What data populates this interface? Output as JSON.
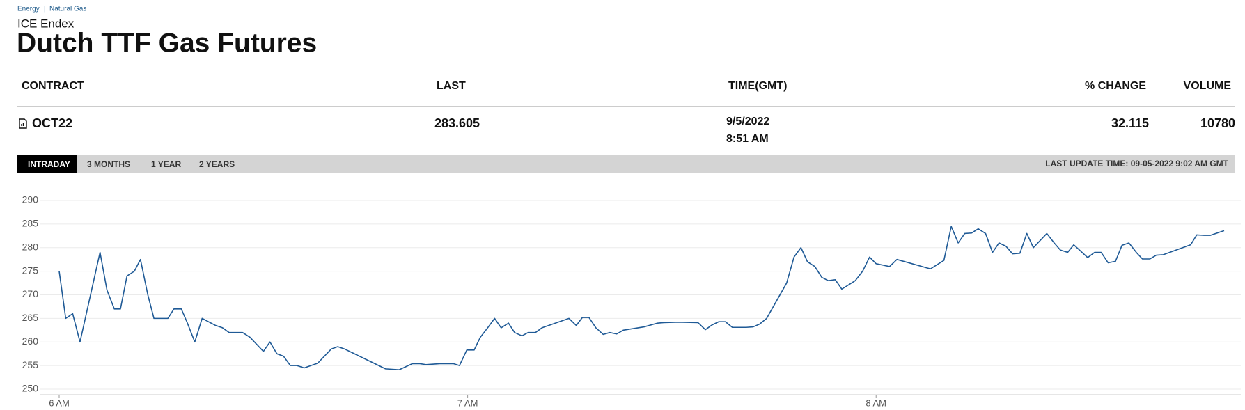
{
  "breadcrumb": [
    "Energy",
    "Natural Gas"
  ],
  "exchange": "ICE Endex",
  "title": "Dutch TTF Gas Futures",
  "table": {
    "headers": [
      "CONTRACT",
      "LAST",
      "TIME(GMT)",
      "% CHANGE",
      "VOLUME"
    ],
    "row": {
      "contract": "OCT22",
      "last": 283.605,
      "date": "9/5/2022",
      "time": "8:51 AM",
      "change": 32.115,
      "volume": 10780
    }
  },
  "tabs": [
    "INTRADAY",
    "3 MONTHS",
    "1 YEAR",
    "2 YEARS"
  ],
  "active_tab": 0,
  "last_update": "LAST UPDATE TIME: 09-05-2022 9:02 AM GMT",
  "chart_data": {
    "type": "line",
    "color": "#1f5a96",
    "grid": true,
    "x": [
      6.0,
      6.016,
      6.033,
      6.051,
      6.1,
      6.117,
      6.135,
      6.15,
      6.166,
      6.184,
      6.199,
      6.217,
      6.232,
      6.266,
      6.281,
      6.299,
      6.314,
      6.332,
      6.35,
      6.383,
      6.4,
      6.416,
      6.449,
      6.467,
      6.5,
      6.516,
      6.533,
      6.549,
      6.566,
      6.582,
      6.6,
      6.633,
      6.666,
      6.682,
      6.699,
      6.799,
      6.832,
      6.865,
      6.883,
      6.898,
      6.932,
      6.965,
      6.98,
      6.998,
      7.016,
      7.031,
      7.049,
      7.066,
      7.082,
      7.1,
      7.115,
      7.133,
      7.148,
      7.166,
      7.182,
      7.248,
      7.266,
      7.281,
      7.297,
      7.314,
      7.332,
      7.348,
      7.365,
      7.381,
      7.432,
      7.465,
      7.48,
      7.516,
      7.564,
      7.582,
      7.598,
      7.615,
      7.631,
      7.648,
      7.682,
      7.699,
      7.715,
      7.732,
      7.781,
      7.799,
      7.816,
      7.832,
      7.85,
      7.867,
      7.883,
      7.9,
      7.916,
      7.949,
      7.967,
      7.984,
      8.0,
      8.033,
      8.051,
      8.133,
      8.166,
      8.184,
      8.201,
      8.217,
      8.234,
      8.25,
      8.268,
      8.285,
      8.301,
      8.318,
      8.334,
      8.352,
      8.369,
      8.385,
      8.418,
      8.436,
      8.451,
      8.469,
      8.484,
      8.518,
      8.535,
      8.551,
      8.568,
      8.586,
      8.602,
      8.619,
      8.637,
      8.652,
      8.67,
      8.686,
      8.703,
      8.77,
      8.785,
      8.803,
      8.818,
      8.852
    ],
    "values": [
      275,
      265,
      266,
      260,
      279,
      271,
      267,
      267,
      274,
      275,
      277.5,
      270,
      265,
      265,
      267,
      267,
      264,
      260,
      265,
      263.5,
      263,
      262,
      262,
      261,
      258,
      260,
      257.5,
      257,
      255,
      255,
      254.5,
      255.5,
      258.5,
      259,
      258.5,
      254.3,
      254.1,
      255.4,
      255.4,
      255.2,
      255.4,
      255.4,
      255,
      258.3,
      258.3,
      261,
      263,
      265,
      263,
      264,
      262,
      261.3,
      262,
      262,
      263,
      265,
      263.5,
      265.2,
      265.2,
      263,
      261.6,
      262,
      261.7,
      262.5,
      263.2,
      264,
      264.1,
      264.2,
      264.1,
      262.6,
      263.6,
      264.3,
      264.3,
      263.1,
      263.1,
      263.2,
      263.8,
      265,
      272.5,
      278,
      280,
      277,
      276,
      273.7,
      273,
      273.2,
      271.2,
      273,
      275,
      278,
      276.6,
      276,
      277.5,
      275.5,
      277.3,
      284.5,
      281,
      283,
      283.1,
      284,
      283,
      279,
      281,
      280.3,
      278.7,
      278.8,
      283,
      280,
      283,
      281,
      279.5,
      279,
      280.6,
      277.9,
      279,
      279,
      276.8,
      277.1,
      280.5,
      281,
      279,
      277.6,
      277.6,
      278.4,
      278.5,
      280.6,
      282.7,
      282.6,
      282.6,
      283.6
    ],
    "xlim": [
      6,
      8.852
    ],
    "xticks": [
      {
        "value": 6,
        "label": "6 AM"
      },
      {
        "value": 7,
        "label": "7 AM"
      },
      {
        "value": 8,
        "label": "8 AM"
      }
    ],
    "ylim": [
      250,
      290
    ],
    "yticks": [
      250,
      255,
      260,
      265,
      270,
      275,
      280,
      285,
      290
    ]
  }
}
